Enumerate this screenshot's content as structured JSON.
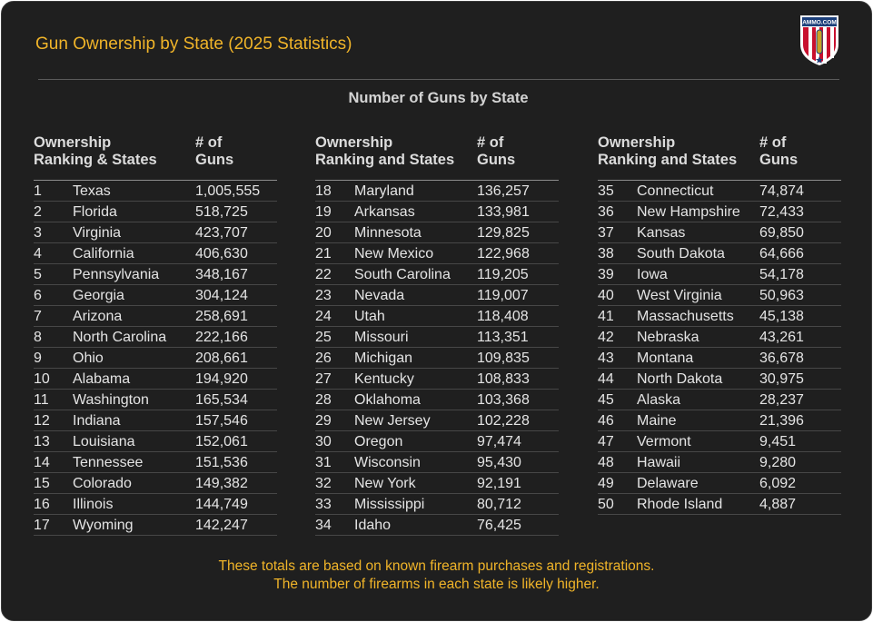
{
  "title": "Gun Ownership by State (2025 Statistics)",
  "logo_text": "AMMO.COM",
  "colors": {
    "background": "#1f1f1f",
    "accent": "#f0b429",
    "text": "#e4e4e4"
  },
  "chart_data": {
    "type": "table",
    "title": "Number of Guns by State",
    "columns": [
      {
        "header_rank": "Ownership\nRanking & States",
        "header_guns": "# of\nGuns",
        "rows": [
          {
            "rank": "1",
            "state": "Texas",
            "guns": "1,005,555"
          },
          {
            "rank": "2",
            "state": "Florida",
            "guns": "518,725"
          },
          {
            "rank": "3",
            "state": "Virginia",
            "guns": "423,707"
          },
          {
            "rank": "4",
            "state": "California",
            "guns": "406,630"
          },
          {
            "rank": "5",
            "state": "Pennsylvania",
            "guns": "348,167"
          },
          {
            "rank": "6",
            "state": "Georgia",
            "guns": "304,124"
          },
          {
            "rank": "7",
            "state": "Arizona",
            "guns": "258,691"
          },
          {
            "rank": "8",
            "state": "North Carolina",
            "guns": "222,166"
          },
          {
            "rank": "9",
            "state": "Ohio",
            "guns": "208,661"
          },
          {
            "rank": "10",
            "state": "Alabama",
            "guns": "194,920"
          },
          {
            "rank": "11",
            "state": "Washington",
            "guns": "165,534"
          },
          {
            "rank": "12",
            "state": "Indiana",
            "guns": "157,546"
          },
          {
            "rank": "13",
            "state": "Louisiana",
            "guns": "152,061"
          },
          {
            "rank": "14",
            "state": "Tennessee",
            "guns": "151,536"
          },
          {
            "rank": "15",
            "state": "Colorado",
            "guns": "149,382"
          },
          {
            "rank": "16",
            "state": "Illinois",
            "guns": "144,749"
          },
          {
            "rank": "17",
            "state": "Wyoming",
            "guns": "142,247"
          }
        ]
      },
      {
        "header_rank": "Ownership\nRanking and States",
        "header_guns": "# of\nGuns",
        "rows": [
          {
            "rank": "18",
            "state": "Maryland",
            "guns": "136,257"
          },
          {
            "rank": "19",
            "state": "Arkansas",
            "guns": "133,981"
          },
          {
            "rank": "20",
            "state": "Minnesota",
            "guns": "129,825"
          },
          {
            "rank": "21",
            "state": "New Mexico",
            "guns": "122,968"
          },
          {
            "rank": "22",
            "state": "South Carolina",
            "guns": "119,205"
          },
          {
            "rank": "23",
            "state": "Nevada",
            "guns": "119,007"
          },
          {
            "rank": "24",
            "state": "Utah",
            "guns": "118,408"
          },
          {
            "rank": "25",
            "state": "Missouri",
            "guns": "113,351"
          },
          {
            "rank": "26",
            "state": "Michigan",
            "guns": "109,835"
          },
          {
            "rank": "27",
            "state": "Kentucky",
            "guns": "108,833"
          },
          {
            "rank": "28",
            "state": "Oklahoma",
            "guns": "103,368"
          },
          {
            "rank": "29",
            "state": "New Jersey",
            "guns": "102,228"
          },
          {
            "rank": "30",
            "state": "Oregon",
            "guns": "97,474"
          },
          {
            "rank": "31",
            "state": "Wisconsin",
            "guns": "95,430"
          },
          {
            "rank": "32",
            "state": "New York",
            "guns": "92,191"
          },
          {
            "rank": "33",
            "state": "Mississippi",
            "guns": "80,712"
          },
          {
            "rank": "34",
            "state": "Idaho",
            "guns": "76,425"
          }
        ]
      },
      {
        "header_rank": "Ownership\nRanking and States",
        "header_guns": "# of\nGuns",
        "rows": [
          {
            "rank": "35",
            "state": "Connecticut",
            "guns": "74,874"
          },
          {
            "rank": "36",
            "state": "New Hampshire",
            "guns": "72,433"
          },
          {
            "rank": "37",
            "state": "Kansas",
            "guns": "69,850"
          },
          {
            "rank": "38",
            "state": "South Dakota",
            "guns": "64,666"
          },
          {
            "rank": "39",
            "state": "Iowa",
            "guns": "54,178"
          },
          {
            "rank": "40",
            "state": "West Virginia",
            "guns": "50,963"
          },
          {
            "rank": "41",
            "state": "Massachusetts",
            "guns": "45,138"
          },
          {
            "rank": "42",
            "state": "Nebraska",
            "guns": "43,261"
          },
          {
            "rank": "43",
            "state": "Montana",
            "guns": "36,678"
          },
          {
            "rank": "44",
            "state": "North Dakota",
            "guns": "30,975"
          },
          {
            "rank": "45",
            "state": "Alaska",
            "guns": "28,237"
          },
          {
            "rank": "46",
            "state": "Maine",
            "guns": "21,396"
          },
          {
            "rank": "47",
            "state": "Vermont",
            "guns": "9,451"
          },
          {
            "rank": "48",
            "state": "Hawaii",
            "guns": "9,280"
          },
          {
            "rank": "49",
            "state": "Delaware",
            "guns": "6,092"
          },
          {
            "rank": "50",
            "state": "Rhode Island",
            "guns": "4,887"
          }
        ]
      }
    ]
  },
  "footnote": {
    "line1": "These totals are based on known firearm purchases and registrations.",
    "line2": "The number of firearms in each state is likely higher."
  }
}
